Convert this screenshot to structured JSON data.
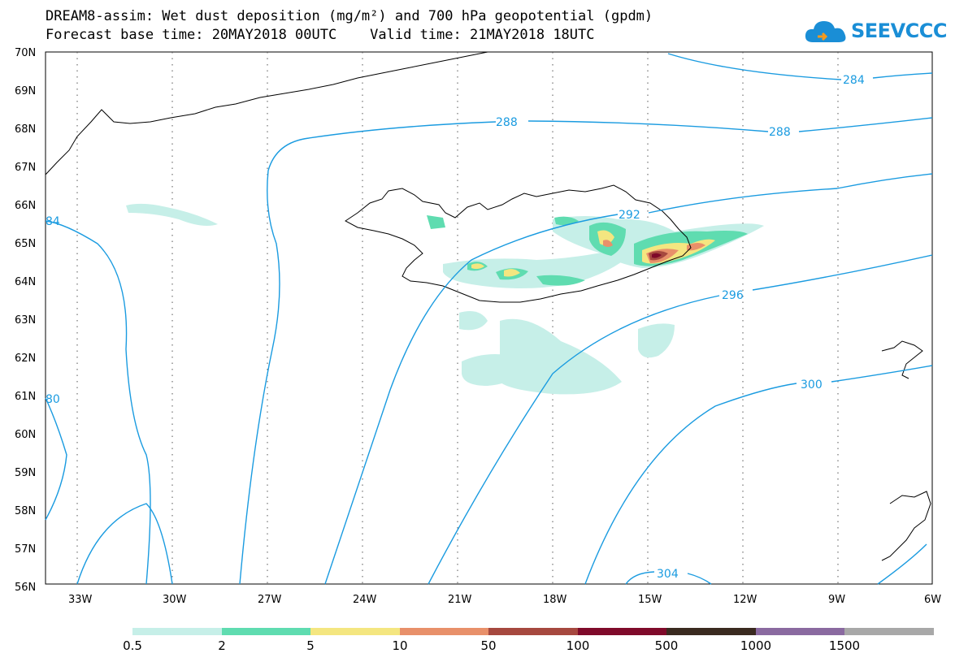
{
  "header": {
    "title_line1": "DREAM8-assim: Wet dust deposition (mg/m²) and 700 hPa geopotential (gpdm)",
    "title_line2": "Forecast base time: 20MAY2018 00UTC    Valid time: 21MAY2018 18UTC",
    "logo_text": "SEEVCCC",
    "logo_icon": "cloud-icon"
  },
  "map": {
    "region": "North Atlantic / Iceland",
    "lon_range": [
      -34,
      -6
    ],
    "lat_range": [
      56,
      70
    ],
    "lat_labels": [
      "70N",
      "69N",
      "68N",
      "67N",
      "66N",
      "65N",
      "64N",
      "63N",
      "62N",
      "61N",
      "60N",
      "59N",
      "58N",
      "57N",
      "56N"
    ],
    "lon_labels": [
      "33W",
      "30W",
      "27W",
      "24W",
      "21W",
      "18W",
      "15W",
      "12W",
      "9W",
      "6W"
    ],
    "contour_color": "#1a9be0",
    "contour_labels": [
      "284",
      "288",
      "288",
      "292",
      "296",
      "300",
      "304",
      "84",
      "80"
    ]
  },
  "legend": {
    "labels": [
      "0.5",
      "2",
      "5",
      "10",
      "50",
      "100",
      "500",
      "1000",
      "1500"
    ],
    "colors": [
      "#c6efe8",
      "#5fdcb0",
      "#f4e680",
      "#e8906a",
      "#a6483f",
      "#7f0a2a",
      "#3a2a20",
      "#8a6aa0",
      "#a8a8a8"
    ]
  }
}
